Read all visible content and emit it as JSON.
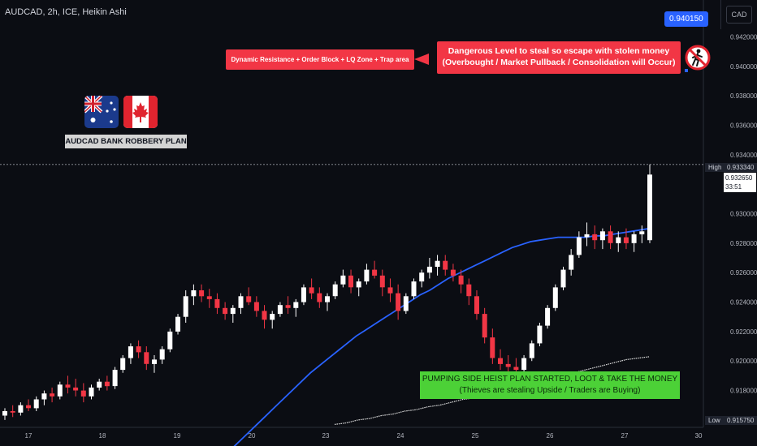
{
  "header": {
    "symbol_title": "AUDCAD, 2h, ICE, Heikin Ashi",
    "currency_button": "CAD"
  },
  "price_scale": {
    "labels": [
      "0.942000",
      "0.940000",
      "0.938000",
      "0.936000",
      "0.934000",
      "0.930000",
      "0.928000",
      "0.926000",
      "0.924000",
      "0.922000",
      "0.920000",
      "0.918000"
    ],
    "high_label": "High",
    "high_value": "0.933340",
    "low_label": "Low",
    "low_value": "0.915750",
    "current_price": "0.932650",
    "countdown": "33:51",
    "target_price": "0.940150"
  },
  "time_axis": {
    "labels": [
      "17",
      "18",
      "19",
      "20",
      "23",
      "24",
      "25",
      "26",
      "27",
      "30"
    ]
  },
  "annotations": {
    "dangerous_level_line1": "Dangerous Level to steal so escape with stolen money",
    "dangerous_level_line2": "(Overbought / Market Pullback / Consolidation will Occur)",
    "resistance_note": "Dynamic Resistance + Order Block + LQ Zone + Trap area",
    "plan_label": "AUDCAD BANK ROBBERY PLAN",
    "heist_line1": "PUMPING SIDE HEIST PLAN STARTED, LOOT & TAKE THE MONEY",
    "heist_line2": "(Thieves are stealing Upside / Traders are Buying)"
  },
  "colors": {
    "background": "#0b0d13",
    "bull": "#ffffff",
    "bear": "#f23645",
    "ma_line": "#2962ff",
    "callout_red": "#f23645",
    "callout_green": "#4cd137",
    "target_tag": "#2962ff"
  },
  "chart_data": {
    "type": "candlestick",
    "style": "Heikin Ashi",
    "timeframe": "2h",
    "x_ticks": [
      "17",
      "18",
      "19",
      "20",
      "23",
      "24",
      "25",
      "26",
      "27",
      "30"
    ],
    "ylim": [
      0.9155,
      0.9445
    ],
    "price_high": 0.93334,
    "price_low": 0.91575,
    "current_price": 0.93265,
    "target_price": 0.94015,
    "grid": false,
    "candles_ohlc": [
      [
        0.9163,
        0.9168,
        0.916,
        0.9166
      ],
      [
        0.9166,
        0.917,
        0.9162,
        0.9165
      ],
      [
        0.9165,
        0.9172,
        0.9163,
        0.917
      ],
      [
        0.917,
        0.9174,
        0.9166,
        0.9168
      ],
      [
        0.9168,
        0.9176,
        0.9166,
        0.9174
      ],
      [
        0.9174,
        0.918,
        0.917,
        0.9178
      ],
      [
        0.9178,
        0.9182,
        0.9172,
        0.9176
      ],
      [
        0.9176,
        0.9186,
        0.9174,
        0.9184
      ],
      [
        0.9184,
        0.919,
        0.9178,
        0.9182
      ],
      [
        0.9182,
        0.9188,
        0.9176,
        0.918
      ],
      [
        0.918,
        0.9185,
        0.9172,
        0.9176
      ],
      [
        0.9176,
        0.9184,
        0.9174,
        0.9182
      ],
      [
        0.9182,
        0.9188,
        0.918,
        0.9186
      ],
      [
        0.9186,
        0.919,
        0.918,
        0.9183
      ],
      [
        0.9183,
        0.9196,
        0.9181,
        0.9194
      ],
      [
        0.9194,
        0.9204,
        0.9192,
        0.9202
      ],
      [
        0.9202,
        0.9212,
        0.9198,
        0.921
      ],
      [
        0.921,
        0.9214,
        0.9202,
        0.9206
      ],
      [
        0.9206,
        0.921,
        0.9194,
        0.9198
      ],
      [
        0.9198,
        0.9204,
        0.9192,
        0.9201
      ],
      [
        0.9201,
        0.921,
        0.9198,
        0.9208
      ],
      [
        0.9208,
        0.9222,
        0.9206,
        0.922
      ],
      [
        0.922,
        0.9232,
        0.9218,
        0.923
      ],
      [
        0.923,
        0.9248,
        0.9226,
        0.9244
      ],
      [
        0.9244,
        0.9252,
        0.9238,
        0.9248
      ],
      [
        0.9248,
        0.9252,
        0.924,
        0.9244
      ],
      [
        0.9244,
        0.9249,
        0.9236,
        0.9242
      ],
      [
        0.9242,
        0.9246,
        0.9232,
        0.9236
      ],
      [
        0.9236,
        0.924,
        0.9228,
        0.9232
      ],
      [
        0.9232,
        0.9238,
        0.9226,
        0.9236
      ],
      [
        0.9236,
        0.9246,
        0.9232,
        0.9244
      ],
      [
        0.9244,
        0.925,
        0.9238,
        0.924
      ],
      [
        0.924,
        0.9244,
        0.923,
        0.9234
      ],
      [
        0.9234,
        0.9238,
        0.9222,
        0.9228
      ],
      [
        0.9228,
        0.9234,
        0.9222,
        0.9232
      ],
      [
        0.9232,
        0.924,
        0.923,
        0.9238
      ],
      [
        0.9238,
        0.9244,
        0.9232,
        0.9236
      ],
      [
        0.9236,
        0.9242,
        0.923,
        0.924
      ],
      [
        0.924,
        0.9252,
        0.9238,
        0.925
      ],
      [
        0.925,
        0.9256,
        0.9242,
        0.9246
      ],
      [
        0.9246,
        0.925,
        0.9236,
        0.924
      ],
      [
        0.924,
        0.9246,
        0.9234,
        0.9244
      ],
      [
        0.9244,
        0.9254,
        0.9242,
        0.9252
      ],
      [
        0.9252,
        0.9262,
        0.925,
        0.9258
      ],
      [
        0.9258,
        0.9262,
        0.9246,
        0.925
      ],
      [
        0.925,
        0.9256,
        0.9244,
        0.9254
      ],
      [
        0.9254,
        0.9266,
        0.9252,
        0.9262
      ],
      [
        0.9262,
        0.9268,
        0.9256,
        0.9258
      ],
      [
        0.9258,
        0.9262,
        0.9244,
        0.925
      ],
      [
        0.925,
        0.9256,
        0.924,
        0.9246
      ],
      [
        0.9246,
        0.9252,
        0.9228,
        0.9234
      ],
      [
        0.9234,
        0.9246,
        0.9232,
        0.9244
      ],
      [
        0.9244,
        0.9256,
        0.9242,
        0.9254
      ],
      [
        0.9254,
        0.9262,
        0.925,
        0.926
      ],
      [
        0.926,
        0.927,
        0.9256,
        0.9264
      ],
      [
        0.9264,
        0.9272,
        0.9258,
        0.9268
      ],
      [
        0.9268,
        0.9272,
        0.9258,
        0.9262
      ],
      [
        0.9262,
        0.9266,
        0.9254,
        0.9258
      ],
      [
        0.9258,
        0.9262,
        0.9246,
        0.9252
      ],
      [
        0.9252,
        0.9256,
        0.9238,
        0.9244
      ],
      [
        0.9244,
        0.9248,
        0.9228,
        0.9232
      ],
      [
        0.9232,
        0.9236,
        0.9212,
        0.9216
      ],
      [
        0.9216,
        0.9222,
        0.9198,
        0.9202
      ],
      [
        0.9202,
        0.9208,
        0.9194,
        0.9198
      ],
      [
        0.9198,
        0.9204,
        0.919,
        0.9196
      ],
      [
        0.9196,
        0.9202,
        0.9188,
        0.9194
      ],
      [
        0.9194,
        0.9204,
        0.9192,
        0.9202
      ],
      [
        0.9202,
        0.9214,
        0.92,
        0.9212
      ],
      [
        0.9212,
        0.9226,
        0.921,
        0.9224
      ],
      [
        0.9224,
        0.9238,
        0.9222,
        0.9236
      ],
      [
        0.9236,
        0.9252,
        0.9234,
        0.925
      ],
      [
        0.925,
        0.9264,
        0.9248,
        0.9262
      ],
      [
        0.9262,
        0.9276,
        0.9258,
        0.9272
      ],
      [
        0.9272,
        0.9288,
        0.927,
        0.9284
      ],
      [
        0.9284,
        0.9294,
        0.9278,
        0.9286
      ],
      [
        0.9286,
        0.9292,
        0.9276,
        0.9282
      ],
      [
        0.9282,
        0.929,
        0.9276,
        0.9288
      ],
      [
        0.9288,
        0.9292,
        0.9276,
        0.928
      ],
      [
        0.928,
        0.9288,
        0.9274,
        0.9284
      ],
      [
        0.9284,
        0.929,
        0.9276,
        0.928
      ],
      [
        0.928,
        0.9288,
        0.9274,
        0.9286
      ],
      [
        0.9286,
        0.9292,
        0.928,
        0.9288
      ],
      [
        0.9282,
        0.93334,
        0.928,
        0.93265
      ]
    ],
    "moving_average": [
      0.9128,
      0.9133,
      0.9138,
      0.9144,
      0.915,
      0.9156,
      0.9162,
      0.9168,
      0.9174,
      0.918,
      0.9186,
      0.9192,
      0.9197,
      0.9202,
      0.9207,
      0.9212,
      0.9217,
      0.9221,
      0.9225,
      0.9229,
      0.9233,
      0.9237,
      0.9241,
      0.9245,
      0.9248,
      0.9252,
      0.9256,
      0.9259,
      0.9262,
      0.9265,
      0.9268,
      0.9271,
      0.9274,
      0.9277,
      0.9279,
      0.9281,
      0.9282,
      0.9283,
      0.9284,
      0.9284,
      0.9284,
      0.9284,
      0.9285,
      0.9285,
      0.9286,
      0.9287,
      0.9288,
      0.9289,
      0.929
    ],
    "lower_band": [
      0.9157,
      0.9158,
      0.916,
      0.9161,
      0.9163,
      0.9164,
      0.9166,
      0.9167,
      0.9169,
      0.917,
      0.9172,
      0.9174,
      0.9175,
      0.9177,
      0.9179,
      0.9181,
      0.9183,
      0.9185,
      0.9187,
      0.9189,
      0.9191,
      0.9193,
      0.9195,
      0.9197,
      0.9199,
      0.9201,
      0.9202,
      0.9203
    ]
  }
}
